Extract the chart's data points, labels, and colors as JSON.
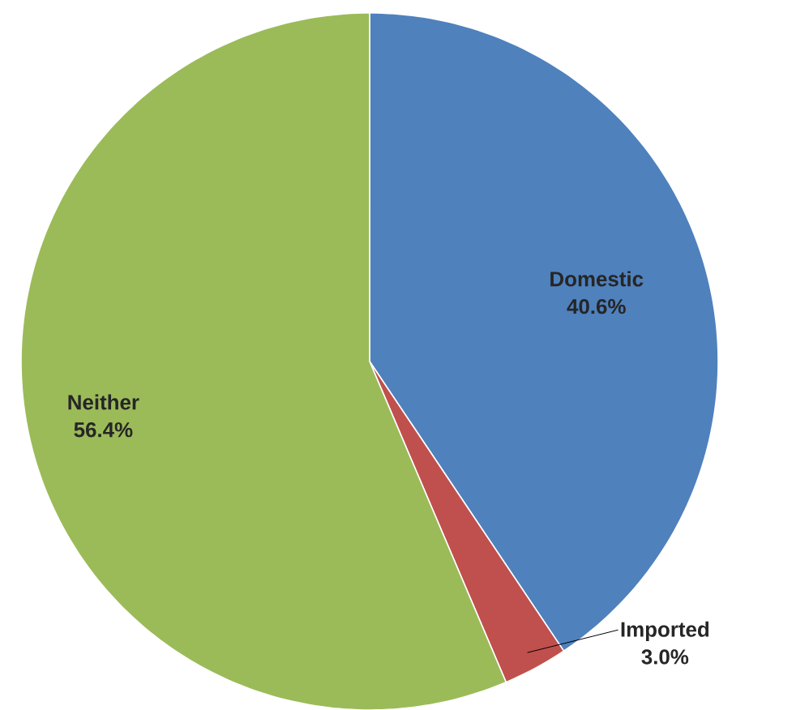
{
  "chart_data": {
    "type": "pie",
    "categories": [
      "Domestic",
      "Imported",
      "Neither"
    ],
    "values": [
      40.6,
      3.0,
      56.4
    ],
    "colors": [
      "#4f81bd",
      "#c0504d",
      "#9bbb59"
    ],
    "value_labels": [
      "40.6%",
      "3.0%",
      "56.4%"
    ]
  }
}
